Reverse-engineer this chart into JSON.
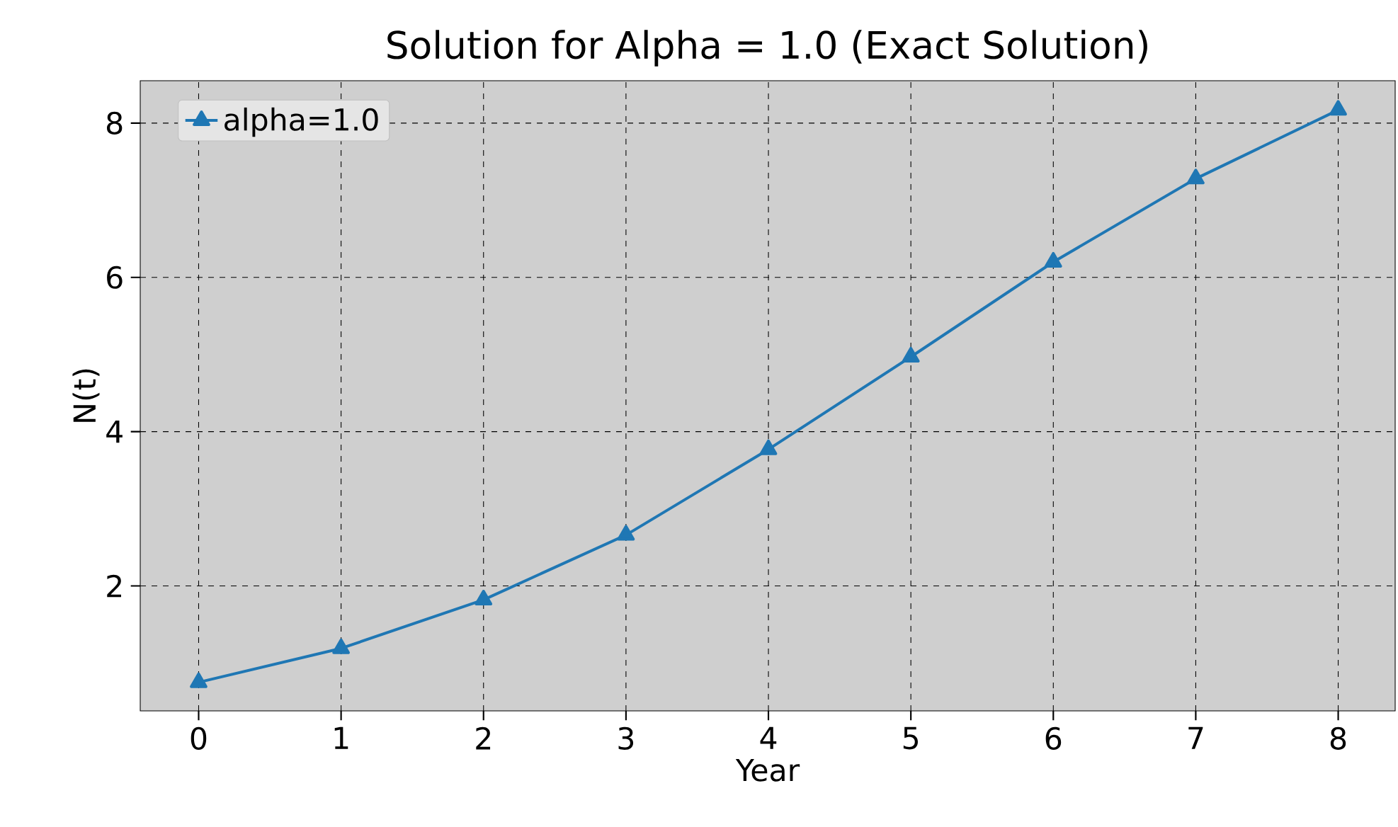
{
  "chart_data": {
    "type": "line",
    "title": "Solution for Alpha = 1.0 (Exact Solution)",
    "xlabel": "Year",
    "ylabel": "N(t)",
    "x": [
      0,
      1,
      2,
      3,
      4,
      5,
      6,
      7,
      8
    ],
    "series": [
      {
        "name": "alpha=1.0",
        "color": "#1f77b4",
        "values": [
          0.75,
          1.19,
          1.82,
          2.66,
          3.77,
          4.97,
          6.2,
          7.28,
          8.17
        ]
      }
    ],
    "xlim": [
      -0.41,
      8.4
    ],
    "ylim": [
      0.38,
      8.55
    ],
    "xticks": [
      0,
      1,
      2,
      3,
      4,
      5,
      6,
      7,
      8
    ],
    "yticks": [
      2,
      4,
      6,
      8
    ],
    "grid": true,
    "legend": "top left",
    "marker": "triangle",
    "line_style": "solid"
  }
}
